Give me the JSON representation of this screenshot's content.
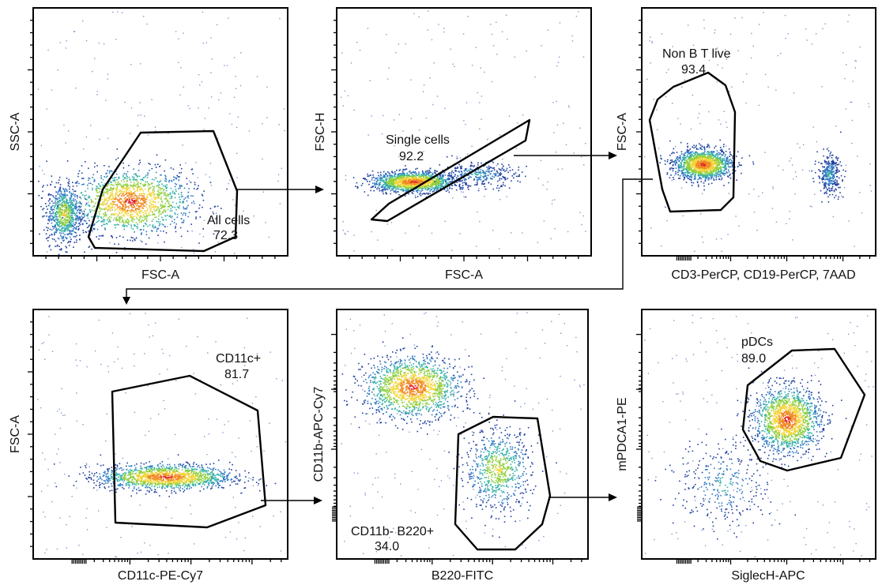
{
  "chart_data": [
    {
      "type": "scatter",
      "xlabel": "FSC-A",
      "ylabel": "SSC-A",
      "gate": {
        "name": "All cells",
        "percent": "72.3"
      },
      "x_scale": "linear",
      "y_scale": "linear",
      "populations": [
        {
          "name": "",
          "center": [
            0.38,
            0.22
          ],
          "spread": [
            0.24,
            0.13
          ],
          "density": "high"
        },
        {
          "name": "",
          "center": [
            0.12,
            0.17
          ],
          "spread": [
            0.07,
            0.12
          ],
          "density": "medium"
        }
      ]
    },
    {
      "type": "scatter",
      "xlabel": "FSC-A",
      "ylabel": "FSC-H",
      "gate": {
        "name": "Single cells",
        "percent": "92.2"
      },
      "x_scale": "linear",
      "y_scale": "linear",
      "populations": [
        {
          "name": "",
          "center": [
            0.3,
            0.3
          ],
          "spread": [
            0.16,
            0.04
          ],
          "density": "high"
        },
        {
          "name": "",
          "center": [
            0.55,
            0.33
          ],
          "spread": [
            0.16,
            0.05
          ],
          "density": "low"
        }
      ]
    },
    {
      "type": "scatter",
      "xlabel": "CD3-PerCP, CD19-PerCP, 7AAD",
      "ylabel": "FSC-A",
      "gate": {
        "name": "Non B T live",
        "percent": "93.4"
      },
      "x_scale": "biexponential",
      "y_scale": "linear",
      "populations": [
        {
          "name": "",
          "center": [
            0.26,
            0.37
          ],
          "spread": [
            0.12,
            0.06
          ],
          "density": "high"
        },
        {
          "name": "",
          "center": [
            0.8,
            0.33
          ],
          "spread": [
            0.05,
            0.08
          ],
          "density": "low"
        }
      ]
    },
    {
      "type": "scatter",
      "xlabel": "CD11c-PE-Cy7",
      "ylabel": "FSC-A",
      "gate": {
        "name": "CD11c+",
        "percent": "81.7"
      },
      "x_scale": "biexponential",
      "y_scale": "linear",
      "populations": [
        {
          "name": "",
          "center": [
            0.52,
            0.33
          ],
          "spread": [
            0.26,
            0.05
          ],
          "density": "high"
        }
      ]
    },
    {
      "type": "scatter",
      "xlabel": "B220-FITC",
      "ylabel": "CD11b-APC-Cy7",
      "gate": {
        "name": "CD11b- B220+",
        "percent": "34.0"
      },
      "x_scale": "biexponential",
      "y_scale": "biexponential",
      "populations": [
        {
          "name": "",
          "center": [
            0.3,
            0.69
          ],
          "spread": [
            0.19,
            0.12
          ],
          "density": "high"
        },
        {
          "name": "",
          "center": [
            0.64,
            0.36
          ],
          "spread": [
            0.13,
            0.16
          ],
          "density": "medium"
        }
      ]
    },
    {
      "type": "scatter",
      "xlabel": "SiglecH-APC",
      "ylabel": "mPDCA1-PE",
      "gate": {
        "name": "pDCs",
        "percent": "89.0"
      },
      "x_scale": "biexponential",
      "y_scale": "biexponential",
      "populations": [
        {
          "name": "",
          "center": [
            0.62,
            0.56
          ],
          "spread": [
            0.14,
            0.13
          ],
          "density": "high"
        },
        {
          "name": "",
          "center": [
            0.35,
            0.3
          ],
          "spread": [
            0.2,
            0.18
          ],
          "density": "low"
        }
      ]
    }
  ],
  "colors": {
    "density_scale": [
      "#1e3f9e",
      "#2f78c2",
      "#36b0a8",
      "#8fcf3f",
      "#f2d43a",
      "#f08a24",
      "#e0262a"
    ],
    "frame": "#000000",
    "gate": "#000000"
  }
}
